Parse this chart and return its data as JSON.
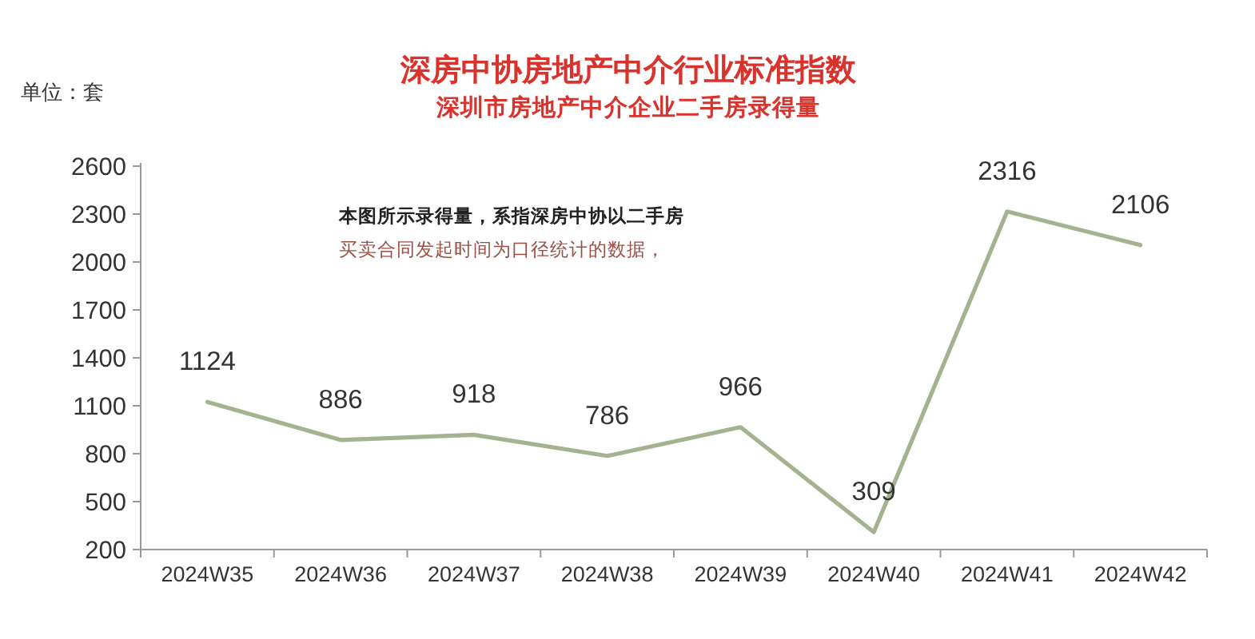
{
  "chart_data": {
    "type": "line",
    "title": "深房中协房地产中介行业标准指数",
    "subtitle": "深圳市房地产中介企业二手房录得量",
    "ylabel": "单位：套",
    "categories": [
      "2024W35",
      "2024W36",
      "2024W37",
      "2024W38",
      "2024W39",
      "2024W40",
      "2024W41",
      "2024W42"
    ],
    "values": [
      1124,
      886,
      918,
      786,
      966,
      309,
      2316,
      2106
    ],
    "color": "#a3b38f",
    "ylim": [
      200,
      2600
    ],
    "yticks": [
      200,
      500,
      800,
      1100,
      1400,
      1700,
      2000,
      2300,
      2600
    ],
    "data_labels": true,
    "annotations": [
      "本图所示录得量，系指深房中协以二手房",
      "买卖合同发起时间为口径统计的数据，"
    ]
  }
}
